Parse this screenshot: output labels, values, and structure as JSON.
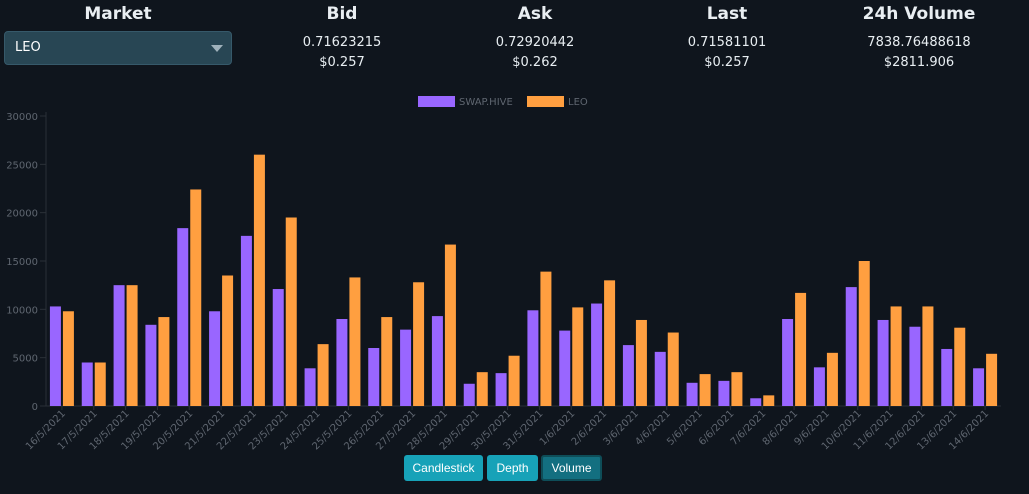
{
  "header": {
    "market_label": "Market",
    "bid_label": "Bid",
    "ask_label": "Ask",
    "last_label": "Last",
    "volume_label": "24h Volume"
  },
  "market_select": {
    "value": "LEO"
  },
  "quotes": {
    "bid": "0.71623215",
    "bid_usd": "$0.257",
    "ask": "0.72920442",
    "ask_usd": "$0.262",
    "last": "0.71581101",
    "last_usd": "$0.257",
    "volume": "7838.76488618",
    "volume_usd": "$2811.906"
  },
  "buttons": {
    "candlestick": "Candlestick",
    "depth": "Depth",
    "volume": "Volume",
    "active": "volume"
  },
  "colors": {
    "swaphive": "#9966ff",
    "leo": "#ff9f40",
    "active_button": "#136f80",
    "button": "#17a2b8"
  },
  "chart_data": {
    "type": "bar",
    "categories": [
      "16/5/2021",
      "17/5/2021",
      "18/5/2021",
      "19/5/2021",
      "20/5/2021",
      "21/5/2021",
      "22/5/2021",
      "23/5/2021",
      "24/5/2021",
      "25/5/2021",
      "26/5/2021",
      "27/5/2021",
      "28/5/2021",
      "29/5/2021",
      "30/5/2021",
      "31/5/2021",
      "1/6/2021",
      "2/6/2021",
      "3/6/2021",
      "4/6/2021",
      "5/6/2021",
      "6/6/2021",
      "7/6/2021",
      "8/6/2021",
      "9/6/2021",
      "10/6/2021",
      "11/6/2021",
      "12/6/2021",
      "13/6/2021",
      "14/6/2021"
    ],
    "series": [
      {
        "name": "SWAP.HIVE",
        "values": [
          10300,
          4500,
          12500,
          8400,
          18400,
          9800,
          17600,
          12100,
          3900,
          9000,
          6000,
          7900,
          9300,
          2300,
          3400,
          9900,
          7800,
          10600,
          6300,
          5600,
          2400,
          2600,
          800,
          9000,
          4000,
          12300,
          8900,
          8200,
          5900,
          3900
        ]
      },
      {
        "name": "LEO",
        "values": [
          9800,
          4500,
          12500,
          9200,
          22400,
          13500,
          26000,
          19500,
          6400,
          13300,
          9200,
          12800,
          16700,
          3500,
          5200,
          13900,
          10200,
          13000,
          8900,
          7600,
          3300,
          3500,
          1100,
          11700,
          5500,
          15000,
          10300,
          10300,
          8100,
          5400
        ]
      }
    ],
    "y_ticks": [
      "0",
      "5000",
      "10000",
      "15000",
      "20000",
      "25000",
      "30000"
    ],
    "ylim": [
      0,
      30000
    ],
    "legend_position": "top-center"
  }
}
